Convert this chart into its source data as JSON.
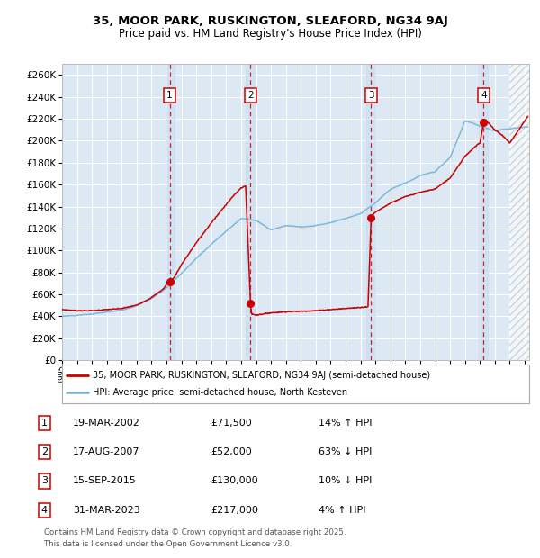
{
  "title_line1": "35, MOOR PARK, RUSKINGTON, SLEAFORD, NG34 9AJ",
  "title_line2": "Price paid vs. HM Land Registry's House Price Index (HPI)",
  "ytick_values": [
    0,
    20000,
    40000,
    60000,
    80000,
    100000,
    120000,
    140000,
    160000,
    180000,
    200000,
    220000,
    240000,
    260000
  ],
  "xlim_start": 1995.0,
  "xlim_end": 2026.3,
  "ylim_min": 0,
  "ylim_max": 270000,
  "transaction_dates": [
    2002.21,
    2007.63,
    2015.71,
    2023.25
  ],
  "transaction_prices": [
    71500,
    52000,
    130000,
    217000
  ],
  "transaction_labels": [
    "1",
    "2",
    "3",
    "4"
  ],
  "transaction_date_strs": [
    "19-MAR-2002",
    "17-AUG-2007",
    "15-SEP-2015",
    "31-MAR-2023"
  ],
  "transaction_price_strs": [
    "£71,500",
    "£52,000",
    "£130,000",
    "£217,000"
  ],
  "transaction_hpi_strs": [
    "14% ↑ HPI",
    "63% ↓ HPI",
    "10% ↓ HPI",
    "4% ↑ HPI"
  ],
  "hpi_color": "#7db8d8",
  "price_color": "#cc0000",
  "bg_color": "#dce9f5",
  "grid_color": "#ffffff",
  "future_start": 2025.0,
  "legend_label_price": "35, MOOR PARK, RUSKINGTON, SLEAFORD, NG34 9AJ (semi-detached house)",
  "legend_label_hpi": "HPI: Average price, semi-detached house, North Kesteven",
  "footnote_line1": "Contains HM Land Registry data © Crown copyright and database right 2025.",
  "footnote_line2": "This data is licensed under the Open Government Licence v3.0."
}
